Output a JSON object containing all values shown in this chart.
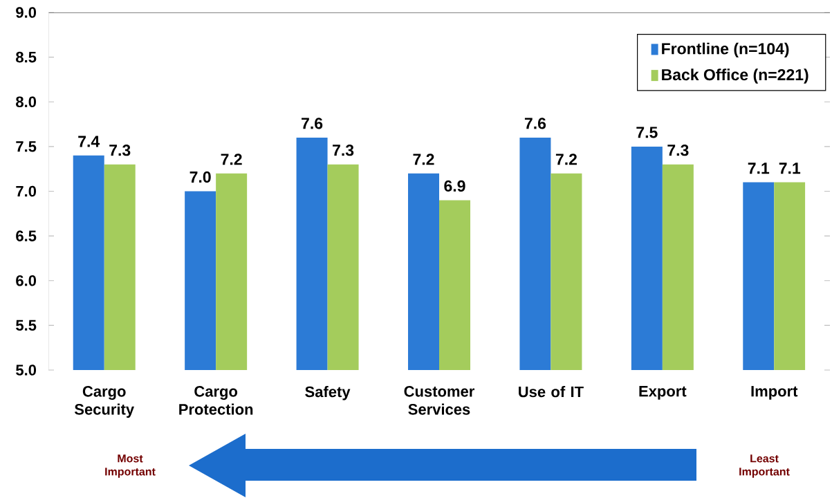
{
  "chart_data": {
    "type": "bar",
    "categories": [
      "Cargo Security",
      "Cargo Protection",
      "Safety",
      "Customer Services",
      "Use of IT",
      "Export",
      "Import"
    ],
    "series": [
      {
        "name": "Frontline (n=104)",
        "color": "#2c7bd6",
        "values": [
          7.4,
          7.0,
          7.6,
          7.2,
          7.6,
          7.5,
          7.1
        ],
        "value_labels": [
          "7.4",
          "7.0",
          "7.6",
          "7.2",
          "7.6",
          "7.5",
          "7.1"
        ]
      },
      {
        "name": "Back Office (n=221)",
        "color": "#a4cc5c",
        "values": [
          7.3,
          7.2,
          7.3,
          6.9,
          7.2,
          7.3,
          7.1
        ],
        "value_labels": [
          "7.3",
          "7.2",
          "7.3",
          "6.9",
          "7.2",
          "7.3",
          "7.1"
        ]
      }
    ],
    "ylim": [
      5,
      9
    ],
    "yticks": [
      {
        "value": 5,
        "label": "5.0"
      },
      5.5,
      {
        "value": 6,
        "label": "6.0"
      },
      6.5,
      {
        "value": 7,
        "label": "7.0"
      },
      7.5,
      {
        "value": 8,
        "label": "8.0"
      },
      8.5,
      {
        "value": 9,
        "label": "9.0"
      }
    ],
    "legend": "top right",
    "annotations": [
      "Most Important",
      "Least Important"
    ]
  }
}
